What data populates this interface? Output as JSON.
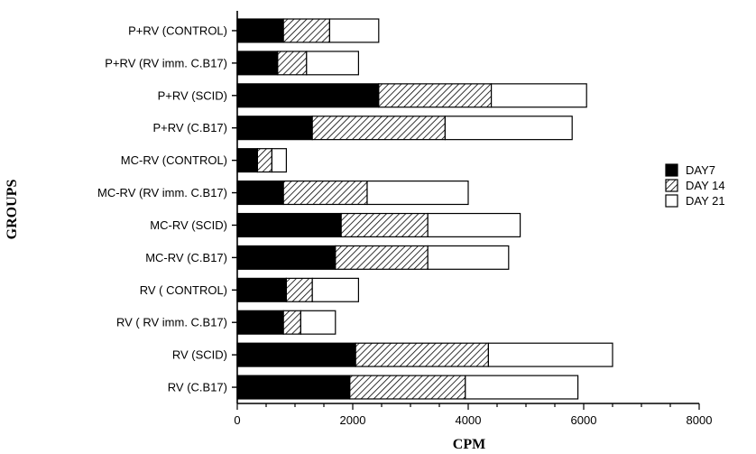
{
  "chart_data": {
    "type": "bar",
    "orientation": "horizontal",
    "stacked": true,
    "title": "",
    "xlabel": "CPM",
    "ylabel": "GROUPS",
    "xlim": [
      0,
      8000
    ],
    "x_ticks": [
      0,
      2000,
      4000,
      6000,
      8000
    ],
    "x_tick_labels": [
      "0",
      "2000",
      "4000",
      "6000",
      "8000"
    ],
    "grid": false,
    "legend_position": "right",
    "categories": [
      "P+RV (CONTROL)",
      "P+RV (RV imm. C.B17)",
      "P+RV (SCID)",
      "P+RV (C.B17)",
      "MC-RV (CONTROL)",
      "MC-RV (RV imm. C.B17)",
      "MC-RV (SCID)",
      "MC-RV (C.B17)",
      "RV ( CONTROL)",
      "RV ( RV imm. C.B17)",
      "RV (SCID)",
      "RV (C.B17)"
    ],
    "series": [
      {
        "name": "DAY7",
        "fill": "solid",
        "color": "#000000",
        "values": [
          800,
          700,
          2450,
          1300,
          350,
          800,
          1800,
          1700,
          850,
          800,
          2050,
          1950
        ]
      },
      {
        "name": "DAY 14",
        "fill": "hatched",
        "color": "#000000",
        "values": [
          800,
          500,
          1950,
          2300,
          250,
          1450,
          1500,
          1600,
          450,
          300,
          2300,
          2000
        ]
      },
      {
        "name": "DAY 21",
        "fill": "white",
        "color": "#ffffff",
        "values": [
          850,
          900,
          1650,
          2200,
          250,
          1750,
          1600,
          1400,
          800,
          600,
          2150,
          1950
        ]
      }
    ]
  }
}
